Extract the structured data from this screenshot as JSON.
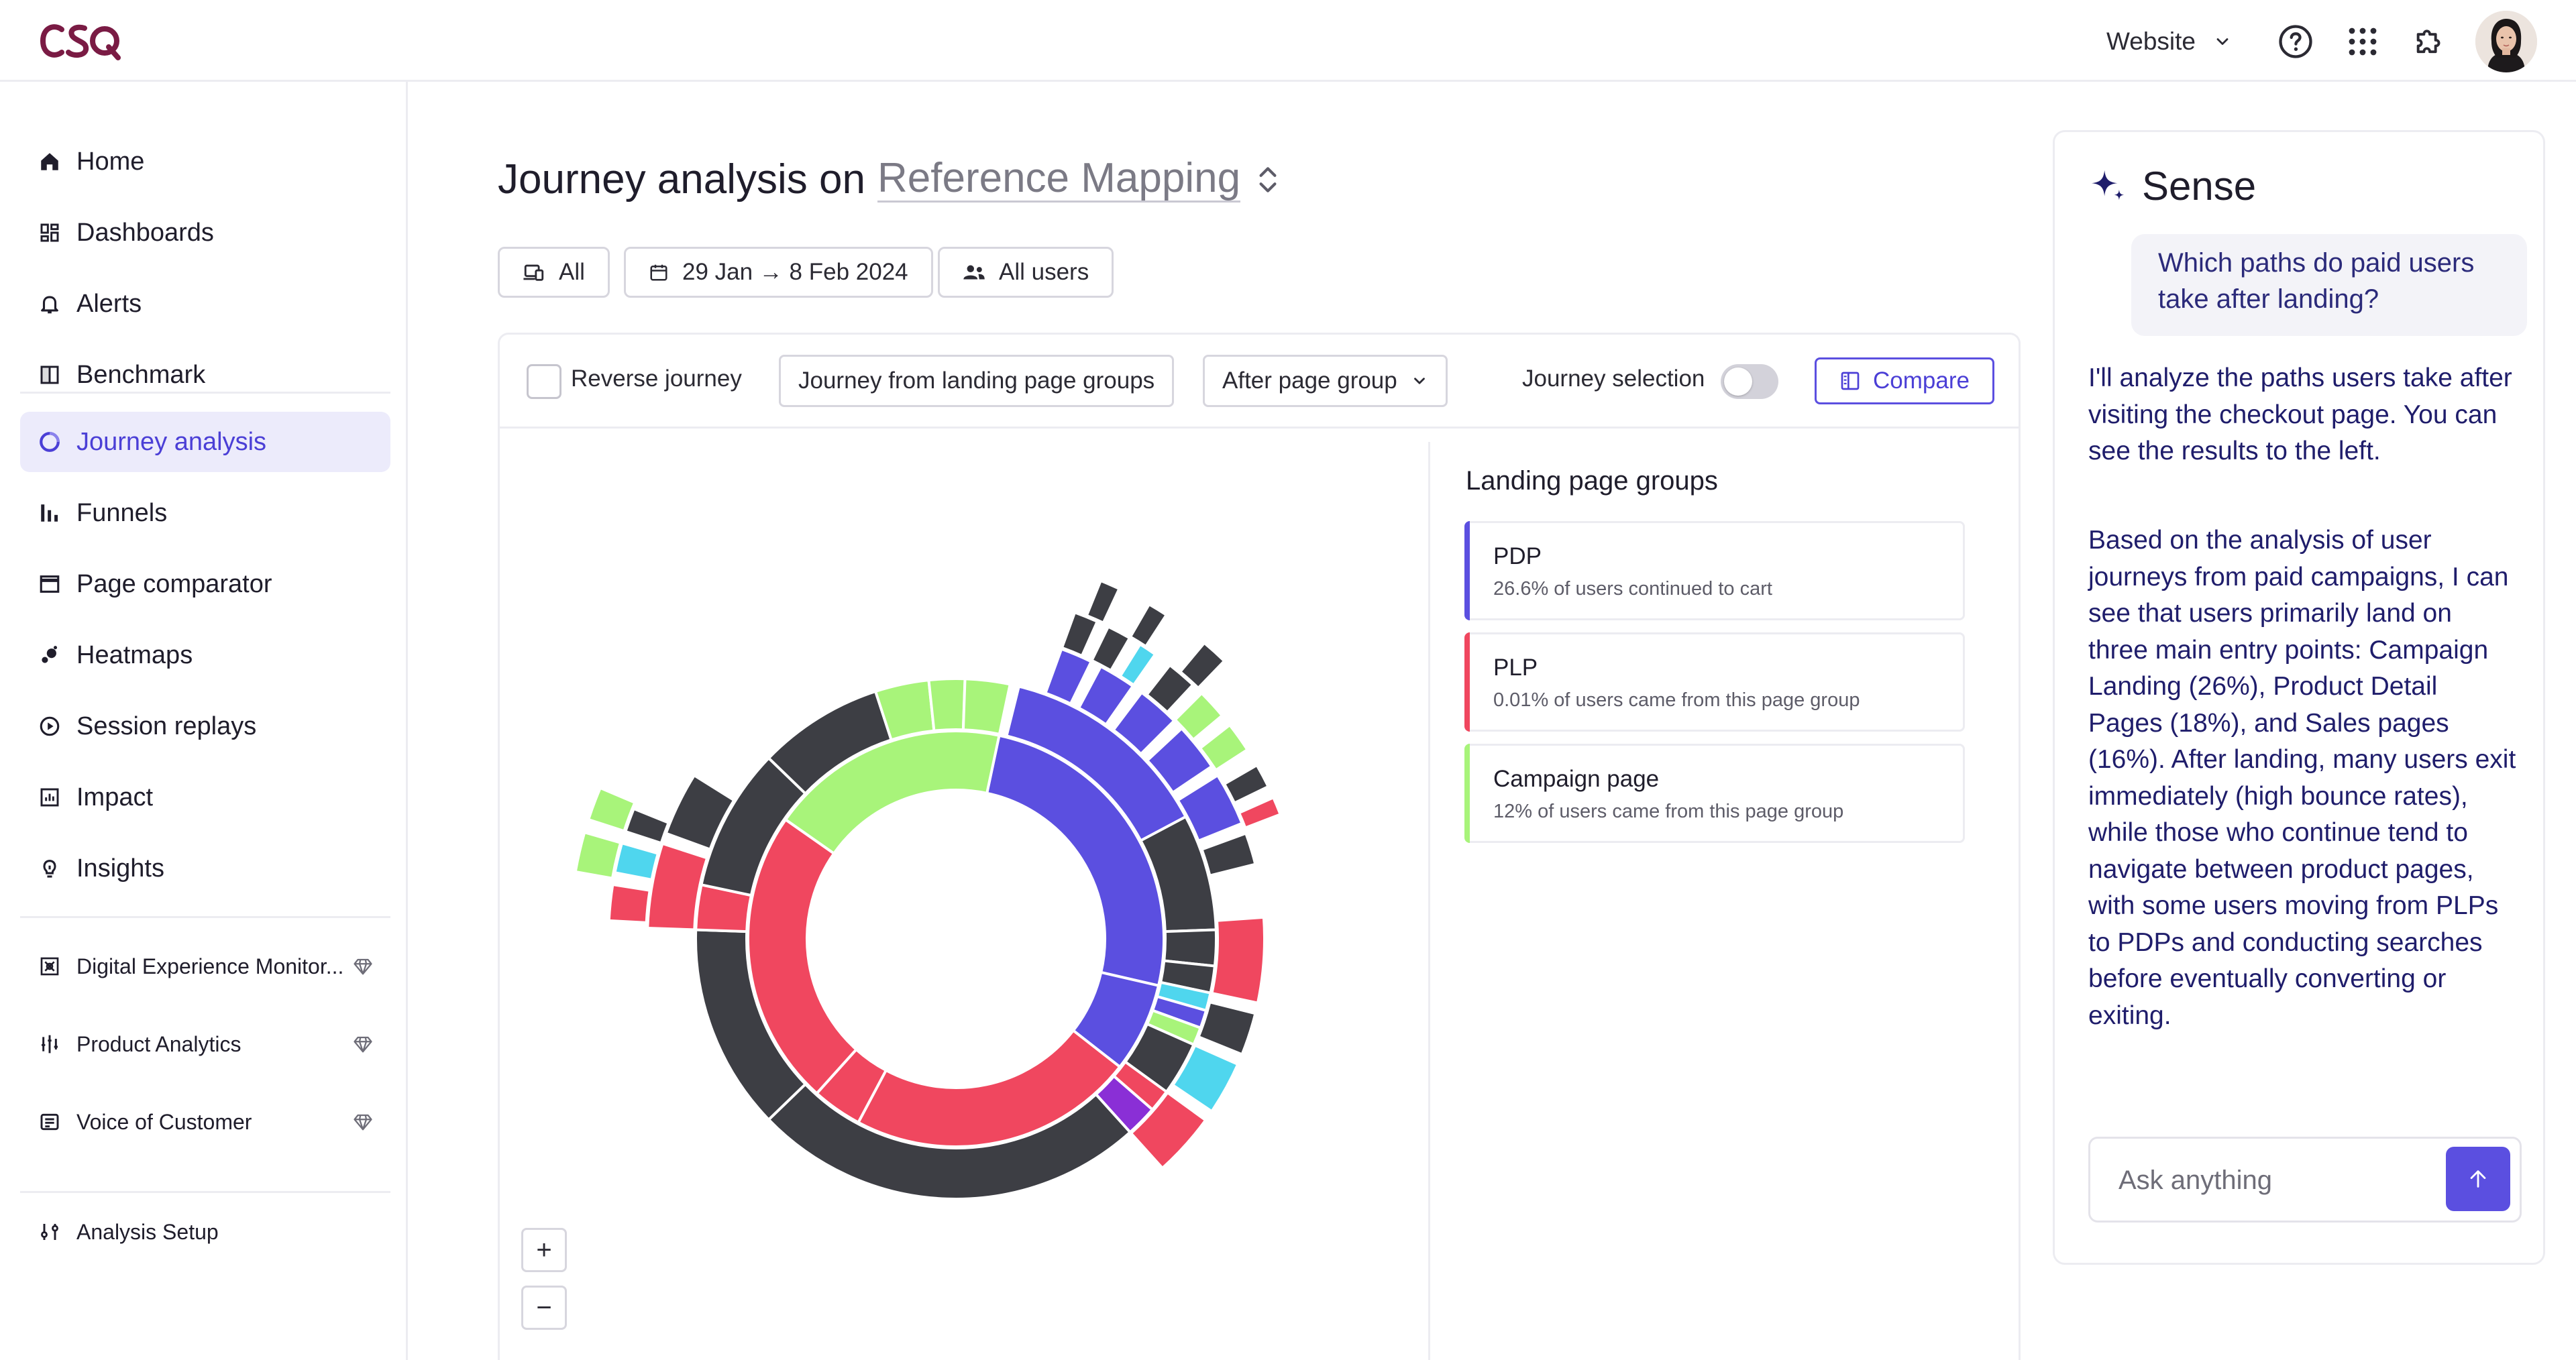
{
  "app": {
    "logo_text": "CSQ",
    "website_selector": "Website",
    "icons": [
      "help-icon",
      "apps-grid-icon",
      "puzzle-icon"
    ]
  },
  "sidebar": {
    "items": [
      {
        "label": "Home",
        "icon": "home-icon"
      },
      {
        "label": "Dashboards",
        "icon": "dashboards-icon"
      },
      {
        "label": "Alerts",
        "icon": "bell-icon"
      },
      {
        "label": "Benchmark",
        "icon": "benchmark-icon"
      },
      {
        "label": "Journey analysis",
        "icon": "journey-icon",
        "active": true
      },
      {
        "label": "Funnels",
        "icon": "funnels-icon"
      },
      {
        "label": "Page comparator",
        "icon": "page-comparator-icon"
      },
      {
        "label": "Heatmaps",
        "icon": "heatmaps-icon"
      },
      {
        "label": "Session replays",
        "icon": "play-icon"
      },
      {
        "label": "Impact",
        "icon": "impact-icon"
      },
      {
        "label": "Insights",
        "icon": "lightbulb-icon"
      },
      {
        "label": "Digital Experience Monitor...",
        "icon": "dem-icon",
        "premium": true
      },
      {
        "label": "Product Analytics",
        "icon": "product-analytics-icon",
        "premium": true
      },
      {
        "label": "Voice of Customer",
        "icon": "voice-icon",
        "premium": true
      },
      {
        "label": "Analysis Setup",
        "icon": "sliders-icon"
      }
    ]
  },
  "main": {
    "title_prefix": "Journey analysis on",
    "title_mapping": "Reference Mapping",
    "filters": {
      "device": "All",
      "date_range": "29 Jan → 8 Feb 2024",
      "segment": "All users"
    },
    "toolbar": {
      "reverse_journey": "Reverse journey",
      "journey_from": "Journey from landing page groups",
      "after_page_group": "After page group",
      "journey_selection": "Journey selection",
      "compare": "Compare"
    },
    "zoom_in": "+",
    "zoom_out": "−",
    "landing_groups_title": "Landing page groups",
    "landing_groups": [
      {
        "name": "PDP",
        "desc": "26.6% of users continued to cart",
        "color": "#5b4fe0"
      },
      {
        "name": "PLP",
        "desc": "0.01% of users came from this page group",
        "color": "#f0475f"
      },
      {
        "name": "Campaign page",
        "desc": "12% of users came from this page group",
        "color": "#a8f47a"
      }
    ]
  },
  "colors": {
    "accent": "#5b4fe0",
    "red": "#f0475f",
    "green": "#a8f47a",
    "dark": "#3d3e44",
    "cyan": "#4fd6ee",
    "purple": "#8a2fd6"
  },
  "sense": {
    "title": "Sense",
    "user_question": "Which paths do paid users take after landing?",
    "reply_1": "I'll analyze the paths users take after visiting the checkout page. You can see the results to the left.",
    "reply_2": "Based on the analysis of user journeys from paid campaigns, I can see that users primarily land on three main entry points: Campaign Landing (26%), Product Detail Pages (18%), and Sales pages (16%). After landing, many users exit immediately (high bounce rates), while those who continue tend to navigate between product pages, with some users moving from PLPs to PDPs and conducting searches before eventually converting or exiting.",
    "input_placeholder": "Ask anything"
  }
}
